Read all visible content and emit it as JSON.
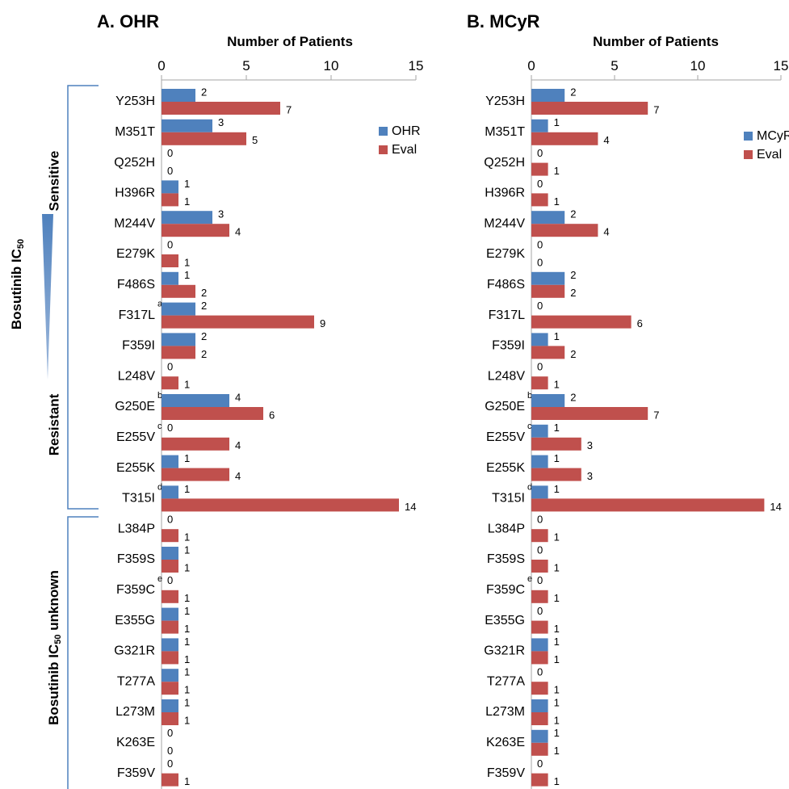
{
  "side_labels": {
    "ic50": "Bosutinib IC",
    "ic50_sub": "50",
    "sensitive": "Sensitive",
    "resistant": "Resistant",
    "unknown_pre": "Bosutinib IC",
    "unknown_sub": "50",
    "unknown_post": " unknown"
  },
  "colors": {
    "blue": "#4f81bd",
    "red": "#c0504d",
    "bracket": "#4f81bd"
  },
  "chart_data": [
    {
      "type": "bar",
      "orientation": "horizontal",
      "title": "A. OHR",
      "xlabel": "Number of Patients",
      "xlim": [
        0,
        15
      ],
      "xticks": [
        0,
        5,
        10,
        15
      ],
      "legend_position": "top-right",
      "categories": [
        "Y253H",
        "M351T",
        "Q252H",
        "H396R",
        "M244V",
        "E279K",
        "F486S",
        "F317L",
        "F359I",
        "L248V",
        "G250E",
        "E255V",
        "E255K",
        "T315I",
        "L384P",
        "F359S",
        "F359C",
        "E355G",
        "G321R",
        "T277A",
        "L273M",
        "K263E",
        "F359V"
      ],
      "superscripts": [
        "",
        "",
        "",
        "",
        "",
        "",
        "",
        "a",
        "",
        "",
        "b",
        "c",
        "",
        "d",
        "",
        "",
        "e",
        "",
        "",
        "",
        "",
        "",
        ""
      ],
      "series": [
        {
          "name": "OHR",
          "color": "#4f81bd",
          "values": [
            2,
            3,
            0,
            1,
            3,
            0,
            1,
            2,
            2,
            0,
            4,
            0,
            1,
            1,
            0,
            1,
            0,
            1,
            1,
            1,
            1,
            0,
            0
          ]
        },
        {
          "name": "Eval",
          "color": "#c0504d",
          "values": [
            7,
            5,
            0,
            1,
            4,
            1,
            2,
            9,
            2,
            1,
            6,
            4,
            4,
            14,
            1,
            1,
            1,
            1,
            1,
            1,
            1,
            0,
            1
          ]
        }
      ]
    },
    {
      "type": "bar",
      "orientation": "horizontal",
      "title": "B. MCyR",
      "xlabel": "Number of Patients",
      "xlim": [
        0,
        15
      ],
      "xticks": [
        0,
        5,
        10,
        15
      ],
      "legend_position": "top-right",
      "categories": [
        "Y253H",
        "M351T",
        "Q252H",
        "H396R",
        "M244V",
        "E279K",
        "F486S",
        "F317L",
        "F359I",
        "L248V",
        "G250E",
        "E255V",
        "E255K",
        "T315I",
        "L384P",
        "F359S",
        "F359C",
        "E355G",
        "G321R",
        "T277A",
        "L273M",
        "K263E",
        "F359V"
      ],
      "superscripts": [
        "",
        "",
        "",
        "",
        "",
        "",
        "",
        "",
        "",
        "",
        "b",
        "c",
        "",
        "d",
        "",
        "",
        "e",
        "",
        "",
        "",
        "",
        "",
        ""
      ],
      "series": [
        {
          "name": "MCyR",
          "color": "#4f81bd",
          "values": [
            2,
            1,
            0,
            0,
            2,
            0,
            2,
            0,
            1,
            0,
            2,
            1,
            1,
            1,
            0,
            0,
            0,
            0,
            1,
            0,
            1,
            1,
            0
          ]
        },
        {
          "name": "Eval",
          "color": "#c0504d",
          "values": [
            7,
            4,
            1,
            1,
            4,
            0,
            2,
            6,
            2,
            1,
            7,
            3,
            3,
            14,
            1,
            1,
            1,
            1,
            1,
            1,
            1,
            1,
            1
          ]
        }
      ]
    }
  ]
}
